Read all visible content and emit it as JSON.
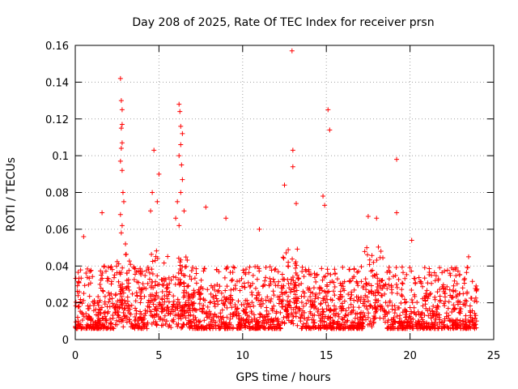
{
  "chart_data": {
    "type": "scatter",
    "title": "Day 208 of 2025, Rate Of TEC Index for receiver prsn",
    "xlabel": "GPS time / hours",
    "ylabel": "ROTI / TECUs",
    "xlim": [
      0,
      25
    ],
    "ylim": [
      0,
      0.16
    ],
    "x_ticks": [
      "0",
      "5",
      "10",
      "15",
      "20",
      "25"
    ],
    "y_ticks": [
      "0",
      "0.02",
      "0.04",
      "0.06",
      "0.08",
      "0.1",
      "0.12",
      "0.14",
      "0.16"
    ],
    "x_tick_values": [
      0,
      5,
      10,
      15,
      20,
      25
    ],
    "y_tick_values": [
      0,
      0.02,
      0.04,
      0.06,
      0.08,
      0.1,
      0.12,
      0.14,
      0.16
    ],
    "grid": true,
    "marker": "+",
    "color": "#ff0000",
    "series": [
      {
        "points": [
          [
            2.7,
            0.142
          ],
          [
            2.75,
            0.13
          ],
          [
            2.8,
            0.125
          ],
          [
            2.8,
            0.117
          ],
          [
            2.75,
            0.115
          ],
          [
            2.8,
            0.107
          ],
          [
            2.75,
            0.104
          ],
          [
            2.7,
            0.097
          ],
          [
            2.8,
            0.092
          ],
          [
            2.85,
            0.08
          ],
          [
            2.9,
            0.075
          ],
          [
            2.7,
            0.068
          ],
          [
            2.8,
            0.062
          ],
          [
            2.75,
            0.058
          ],
          [
            3.0,
            0.052
          ],
          [
            4.7,
            0.103
          ],
          [
            5.0,
            0.09
          ],
          [
            4.6,
            0.08
          ],
          [
            4.9,
            0.075
          ],
          [
            4.5,
            0.07
          ],
          [
            6.2,
            0.128
          ],
          [
            6.25,
            0.124
          ],
          [
            6.3,
            0.116
          ],
          [
            6.4,
            0.112
          ],
          [
            6.3,
            0.106
          ],
          [
            6.2,
            0.1
          ],
          [
            6.35,
            0.095
          ],
          [
            6.4,
            0.087
          ],
          [
            6.3,
            0.08
          ],
          [
            6.1,
            0.075
          ],
          [
            6.5,
            0.07
          ],
          [
            6.0,
            0.066
          ],
          [
            6.2,
            0.062
          ],
          [
            12.95,
            0.157
          ],
          [
            13.0,
            0.103
          ],
          [
            13.0,
            0.094
          ],
          [
            12.5,
            0.084
          ],
          [
            13.2,
            0.074
          ],
          [
            15.1,
            0.125
          ],
          [
            15.2,
            0.114
          ],
          [
            14.8,
            0.078
          ],
          [
            14.9,
            0.073
          ],
          [
            19.2,
            0.098
          ],
          [
            19.2,
            0.069
          ],
          [
            1.6,
            0.069
          ],
          [
            0.5,
            0.056
          ],
          [
            7.8,
            0.072
          ],
          [
            9.0,
            0.066
          ],
          [
            11.0,
            0.06
          ],
          [
            17.5,
            0.067
          ],
          [
            18.0,
            0.066
          ],
          [
            20.1,
            0.054
          ],
          [
            23.5,
            0.045
          ]
        ]
      }
    ]
  }
}
